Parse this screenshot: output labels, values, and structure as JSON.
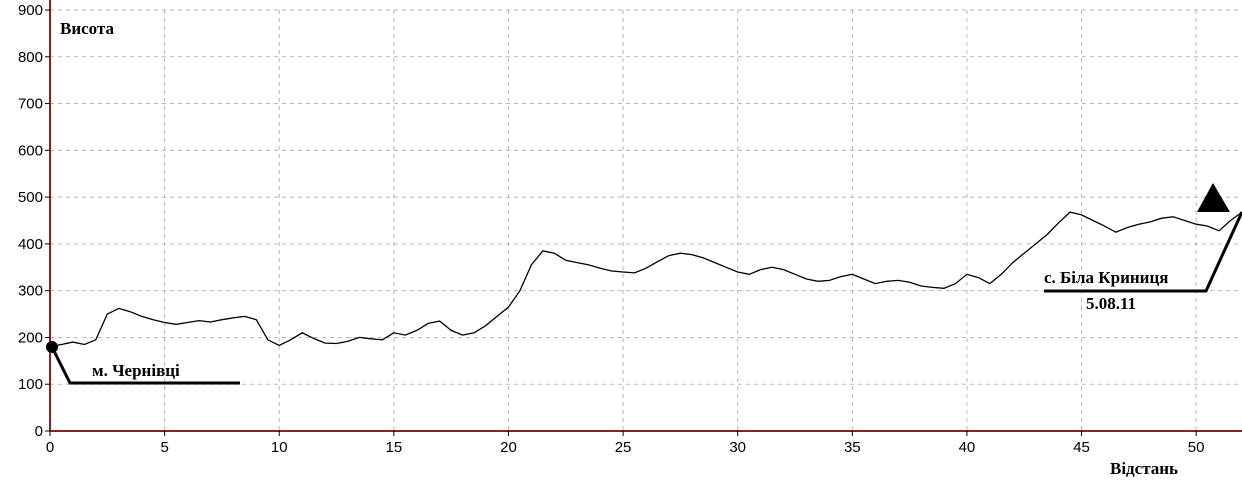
{
  "chart_data": {
    "type": "line",
    "ylabel": "Висота",
    "xlabel": "Відстань",
    "xlim": [
      0,
      52
    ],
    "ylim": [
      0,
      900
    ],
    "xticks": [
      0,
      5,
      10,
      15,
      20,
      25,
      30,
      35,
      40,
      45,
      50
    ],
    "yticks": [
      0,
      100,
      200,
      300,
      400,
      500,
      600,
      700,
      800,
      900
    ],
    "grid": true,
    "series": [
      {
        "x": [
          0,
          0.5,
          1,
          1.5,
          2,
          2.5,
          3,
          3.5,
          4,
          4.5,
          5,
          5.5,
          6,
          6.5,
          7,
          7.5,
          8,
          8.5,
          9,
          9.5,
          10,
          10.5,
          11,
          11.5,
          12,
          12.5,
          13,
          13.5,
          14,
          14.5,
          15,
          15.5,
          16,
          16.5,
          17,
          17.5,
          18,
          18.5,
          19,
          19.5,
          20,
          20.5,
          21,
          21.5,
          22,
          22.5,
          23,
          23.5,
          24,
          24.5,
          25,
          25.5,
          26,
          26.5,
          27,
          27.5,
          28,
          28.5,
          29,
          29.5,
          30,
          30.5,
          31,
          31.5,
          32,
          32.5,
          33,
          33.5,
          34,
          34.5,
          35,
          35.5,
          36,
          36.5,
          37,
          37.5,
          38,
          38.5,
          39,
          39.5,
          40,
          40.5,
          41,
          41.5,
          42,
          42.5,
          43,
          43.5,
          44,
          44.5,
          45,
          45.5,
          46,
          46.5,
          47,
          47.5,
          48,
          48.5,
          49,
          49.5,
          50,
          50.5,
          51,
          51.5,
          52
        ],
        "values": [
          180,
          185,
          190,
          185,
          195,
          250,
          262,
          255,
          245,
          238,
          232,
          228,
          232,
          236,
          233,
          238,
          242,
          245,
          238,
          195,
          183,
          195,
          210,
          198,
          188,
          187,
          192,
          200,
          197,
          195,
          210,
          205,
          215,
          230,
          235,
          215,
          205,
          210,
          225,
          245,
          265,
          300,
          355,
          385,
          380,
          365,
          360,
          355,
          348,
          342,
          340,
          338,
          348,
          362,
          375,
          380,
          377,
          370,
          360,
          350,
          340,
          335,
          345,
          350,
          345,
          335,
          325,
          320,
          322,
          330,
          335,
          325,
          315,
          320,
          322,
          318,
          310,
          307,
          305,
          315,
          335,
          328,
          315,
          335,
          360,
          380,
          400,
          420,
          445,
          468,
          462,
          450,
          438,
          425,
          435,
          442,
          447,
          455,
          458,
          450,
          442,
          438,
          428,
          450,
          468
        ]
      }
    ],
    "annotations": [
      {
        "text": "м. Чернівці",
        "x": 0,
        "y": 180
      },
      {
        "text": "с. Біла Криниця",
        "line2": "5.08.11",
        "x": 52,
        "y": 468
      }
    ]
  }
}
